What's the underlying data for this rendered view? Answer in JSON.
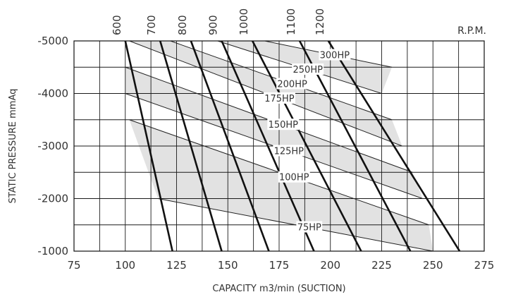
{
  "chart_data": {
    "type": "line",
    "xlabel": "CAPACITY m3/min (SUCTION)",
    "ylabel": "STATIC PRESSURE mmAq",
    "rpm_unit_label": "R.P.M.",
    "xlim": [
      75,
      275
    ],
    "ylim": [
      -1000,
      -5000
    ],
    "x_ticks": [
      75,
      100,
      125,
      150,
      175,
      200,
      225,
      250,
      275
    ],
    "y_ticks": [
      -1000,
      -2000,
      -3000,
      -4000,
      -5000
    ],
    "y_tick_labels": [
      "-1000",
      "-2000",
      "-3000",
      "-4000",
      "-5000"
    ],
    "grid": true,
    "rpm_series": [
      {
        "name": "600",
        "x": [
          100,
          123
        ],
        "y": [
          -5000,
          -1000
        ]
      },
      {
        "name": "700",
        "x": [
          117,
          147
        ],
        "y": [
          -5000,
          -1000
        ]
      },
      {
        "name": "800",
        "x": [
          132,
          170
        ],
        "y": [
          -5000,
          -1000
        ]
      },
      {
        "name": "900",
        "x": [
          147,
          192
        ],
        "y": [
          -5000,
          -1000
        ]
      },
      {
        "name": "1000",
        "x": [
          162,
          215
        ],
        "y": [
          -5000,
          -1000
        ]
      },
      {
        "name": "1100",
        "x": [
          185,
          239
        ],
        "y": [
          -5000,
          -1000
        ]
      },
      {
        "name": "1200",
        "x": [
          199,
          263
        ],
        "y": [
          -5000,
          -1000
        ]
      }
    ],
    "hp_series": [
      {
        "name": "75HP",
        "x": [
          116,
          250
        ],
        "y": [
          -2000,
          -1000
        ]
      },
      {
        "name": "100HP",
        "x": [
          102,
          248
        ],
        "y": [
          -3500,
          -1500
        ]
      },
      {
        "name": "125HP",
        "x": [
          100,
          245
        ],
        "y": [
          -4000,
          -2000
        ]
      },
      {
        "name": "150HP",
        "x": [
          100,
          240
        ],
        "y": [
          -4500,
          -2500
        ]
      },
      {
        "name": "175HP",
        "x": [
          102,
          235
        ],
        "y": [
          -5000,
          -3000
        ]
      },
      {
        "name": "200HP",
        "x": [
          122,
          230
        ],
        "y": [
          -5000,
          -3500
        ]
      },
      {
        "name": "250HP",
        "x": [
          145,
          225
        ],
        "y": [
          -5000,
          -4000
        ]
      },
      {
        "name": "300HP",
        "x": [
          168,
          230
        ],
        "y": [
          -5000,
          -4500
        ]
      }
    ],
    "shaded_bands": [
      [
        "75HP",
        "100HP"
      ],
      [
        "125HP",
        "150HP"
      ],
      [
        "175HP",
        "200HP"
      ],
      [
        "250HP",
        "300HP"
      ]
    ]
  }
}
